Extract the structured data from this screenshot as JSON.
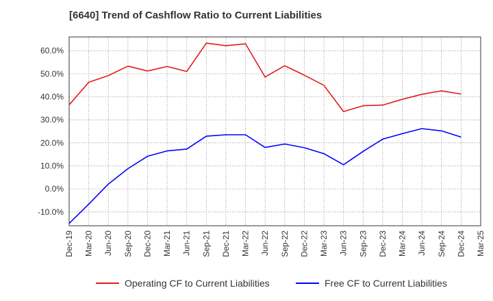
{
  "chart_data": {
    "type": "line",
    "title": "[6640]  Trend of Cashflow Ratio to Current Liabilities",
    "xlabel": "",
    "ylabel": "",
    "categories": [
      "Dec-19",
      "Mar-20",
      "Jun-20",
      "Sep-20",
      "Dec-20",
      "Mar-21",
      "Jun-21",
      "Sep-21",
      "Dec-21",
      "Mar-22",
      "Jun-22",
      "Sep-22",
      "Dec-22",
      "Mar-23",
      "Jun-23",
      "Sep-23",
      "Dec-23",
      "Mar-24",
      "Jun-24",
      "Sep-24",
      "Dec-24",
      "Mar-25"
    ],
    "y_ticks": [
      "-10.0%",
      "0.0%",
      "10.0%",
      "20.0%",
      "30.0%",
      "40.0%",
      "50.0%",
      "60.0%"
    ],
    "y_tick_values": [
      -10,
      0,
      10,
      20,
      30,
      40,
      50,
      60
    ],
    "ylim": [
      -16,
      66
    ],
    "grid": true,
    "legend_position": "bottom",
    "series": [
      {
        "name": "Operating CF to Current Liabilities",
        "color": "#e31a1c",
        "values": [
          36.5,
          46.3,
          49.2,
          53.3,
          51.2,
          53.2,
          51.0,
          63.3,
          62.2,
          63.0,
          48.6,
          53.5,
          49.4,
          45.0,
          33.6,
          36.1,
          36.4,
          38.9,
          41.1,
          42.6,
          41.2,
          null
        ]
      },
      {
        "name": "Free CF to Current Liabilities",
        "color": "#0000ff",
        "values": [
          -15.0,
          -6.6,
          2.1,
          8.8,
          14.2,
          16.5,
          17.3,
          22.9,
          23.5,
          23.5,
          18.0,
          19.5,
          17.9,
          15.3,
          10.5,
          16.3,
          21.6,
          24.0,
          26.2,
          25.2,
          22.5,
          null
        ]
      }
    ]
  }
}
